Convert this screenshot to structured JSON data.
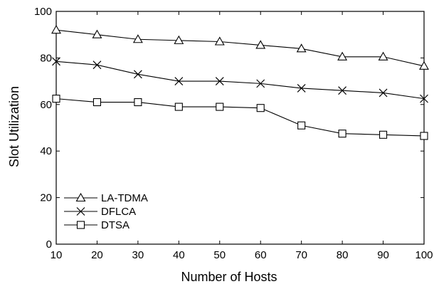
{
  "chart_data": {
    "type": "line",
    "title": "",
    "xlabel": "Number of Hosts",
    "ylabel": "Slot Utilization",
    "x": [
      10,
      20,
      30,
      40,
      50,
      60,
      70,
      80,
      90,
      100
    ],
    "xlim": [
      10,
      100
    ],
    "ylim": [
      0,
      100
    ],
    "xticks": [
      10,
      20,
      30,
      40,
      50,
      60,
      70,
      80,
      90,
      100
    ],
    "yticks": [
      0,
      20,
      40,
      60,
      80,
      100
    ],
    "grid": false,
    "legend_position": "bottom-left",
    "series": [
      {
        "name": "LA-TDMA",
        "marker": "triangle",
        "values": [
          92,
          90,
          88,
          87.5,
          87,
          85.5,
          84,
          80.5,
          80.5,
          76.5
        ]
      },
      {
        "name": "DFLCA",
        "marker": "x",
        "values": [
          78.5,
          77,
          73,
          70,
          70,
          69,
          67,
          66,
          65,
          62.5
        ]
      },
      {
        "name": "DTSA",
        "marker": "square",
        "values": [
          62.5,
          61,
          61,
          59,
          59,
          58.5,
          51,
          47.5,
          47,
          46.5
        ]
      }
    ]
  }
}
